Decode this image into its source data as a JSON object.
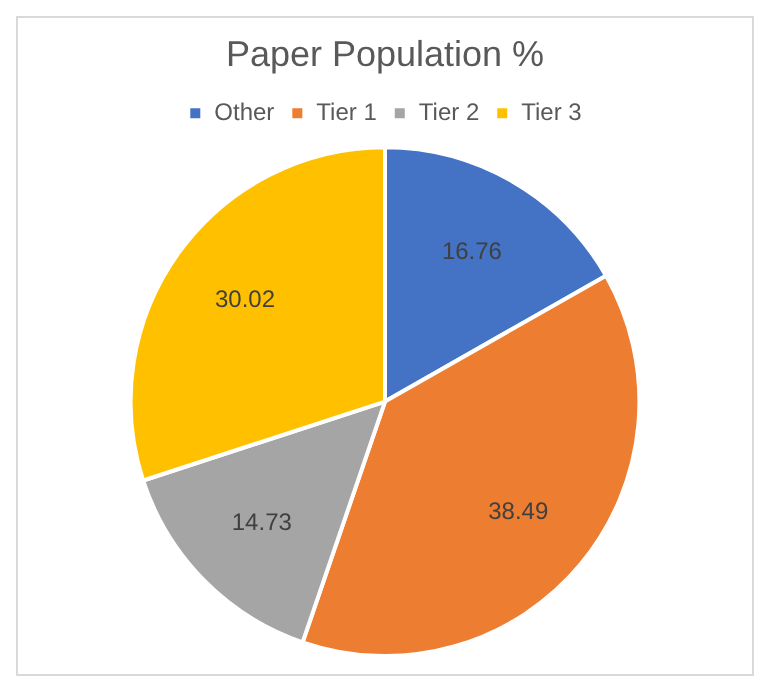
{
  "chart_data": {
    "type": "pie",
    "title": "Paper Population %",
    "categories": [
      "Other",
      "Tier 1",
      "Tier 2",
      "Tier 3"
    ],
    "values": [
      16.76,
      38.49,
      14.73,
      30.02
    ],
    "colors": [
      "#4472c4",
      "#ed7d31",
      "#a5a5a5",
      "#ffc000"
    ],
    "legend": "top",
    "data_labels": true
  }
}
